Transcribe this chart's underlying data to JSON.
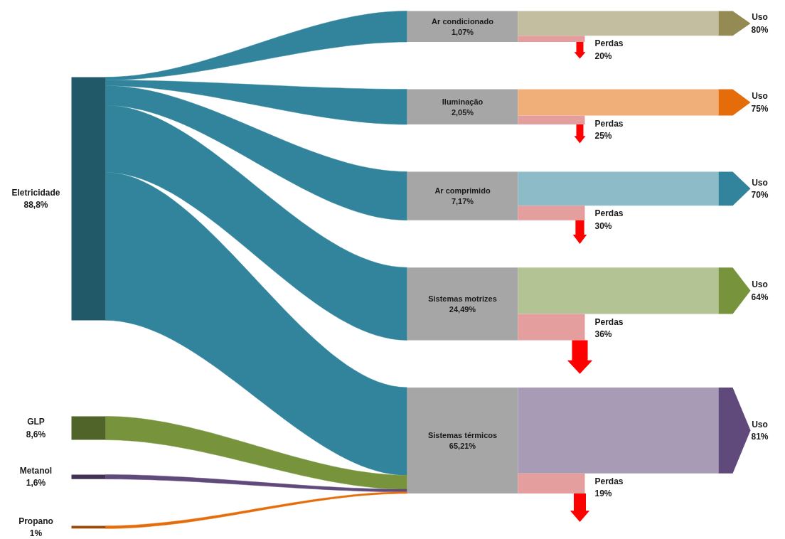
{
  "chart_data": {
    "type": "other",
    "categories": [
      "Eletricidade",
      "GLP",
      "Metanol",
      "Propano",
      "Ar condicionado",
      "Iluminação",
      "Ar comprimido",
      "Sistemas motrizes",
      "Sistemas térmicos"
    ],
    "values": [
      88.8,
      8.6,
      1.6,
      1,
      1.07,
      2.05,
      7.17,
      24.49,
      65.21
    ],
    "value_labels": [
      "88,8%",
      "8,6%",
      "1,6%",
      "1%",
      "1,07%",
      "2,05%",
      "7,17%",
      "24,49%",
      "65,21%"
    ],
    "colors": [
      "#31849b",
      "#77933c",
      "#604a7b",
      "#e46c0a",
      "#a6a6a6",
      "#a6a6a6",
      "#a6a6a6",
      "#a6a6a6",
      "#a6a6a6"
    ],
    "series": [
      {
        "name": "Uso",
        "values": [
          null,
          null,
          null,
          null,
          80,
          75,
          70,
          64,
          81
        ],
        "value_labels": [
          null,
          null,
          null,
          null,
          "80%",
          "75%",
          "70%",
          "64%",
          "81%"
        ],
        "colors": [
          null,
          null,
          null,
          null,
          "#948a54",
          "#e46c0a",
          "#31849b",
          "#77933c",
          "#604a7b"
        ]
      },
      {
        "name": "Perdas",
        "values": [
          null,
          null,
          null,
          null,
          20,
          25,
          30,
          36,
          19
        ],
        "value_labels": [
          null,
          null,
          null,
          null,
          "20%",
          "25%",
          "30%",
          "36%",
          "19%"
        ],
        "colors": [
          null,
          null,
          null,
          null,
          "#ff0000",
          "#ff0000",
          "#ff0000",
          "#ff0000",
          "#ff0000"
        ]
      }
    ]
  }
}
